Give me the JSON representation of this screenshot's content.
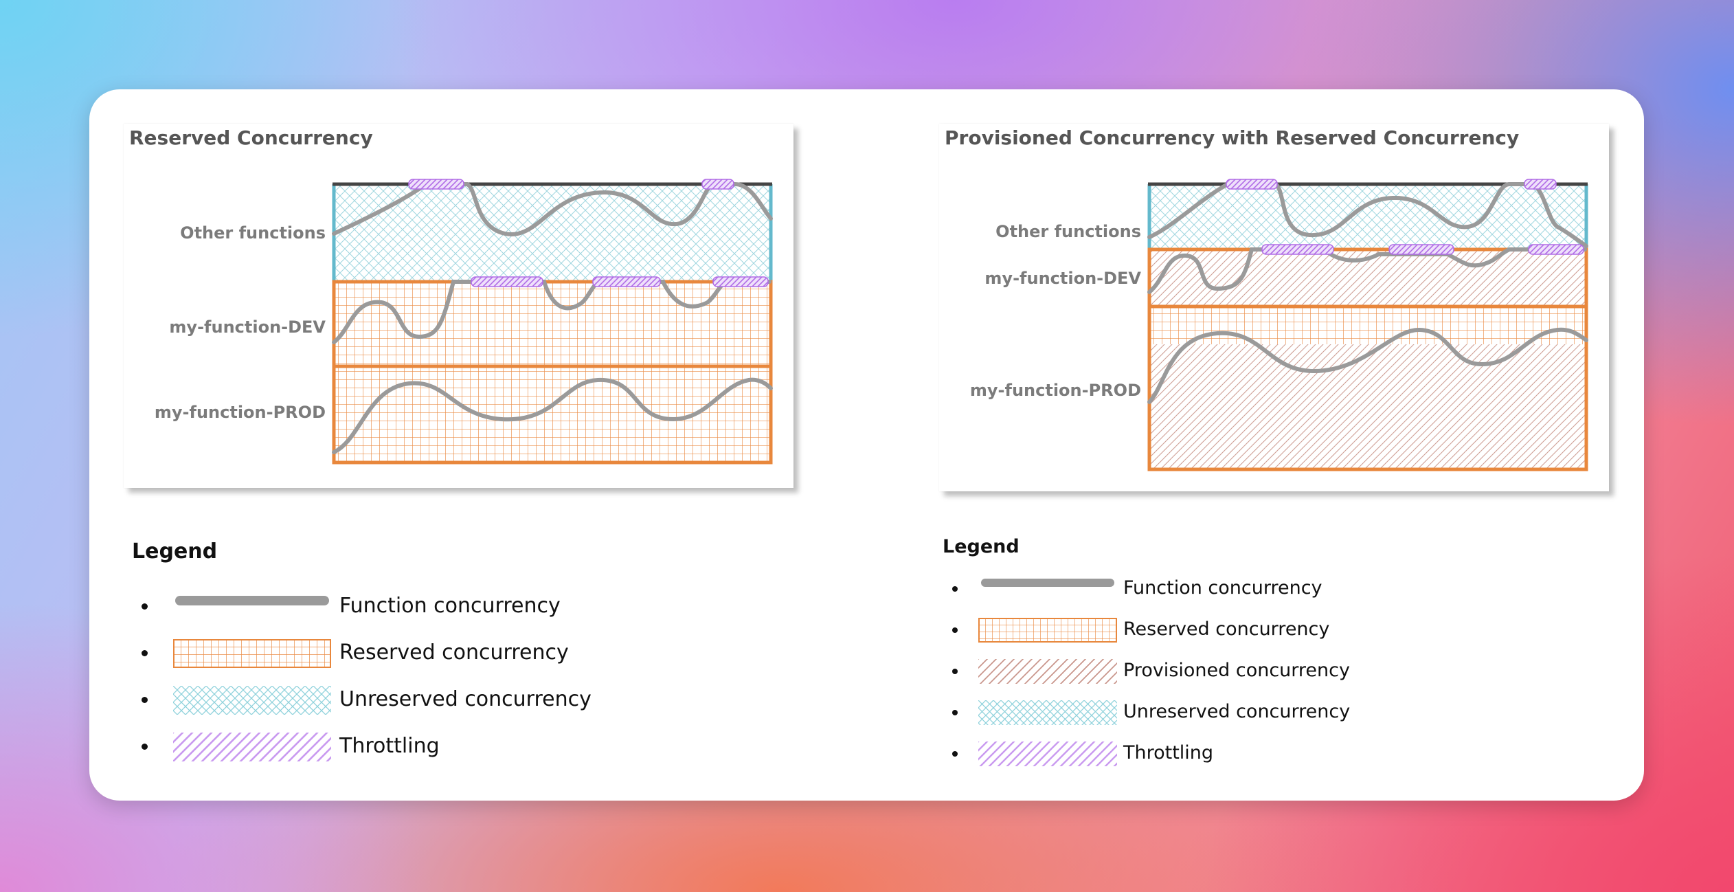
{
  "colors": {
    "function_line": "#9a9a9a",
    "reserved": "#e8873c",
    "provisioned": "#c9968c",
    "unreserved": "#8fd2dc",
    "throttling": "#b56ee6",
    "unreserved_border": "#63b9cc",
    "top_bar": "#444444"
  },
  "diagram_left": {
    "title": "Reserved Concurrency",
    "rows": [
      {
        "label": "Other functions",
        "fill": "unreserved"
      },
      {
        "label": "my-function-DEV",
        "fill": "reserved"
      },
      {
        "label": "my-function-PROD",
        "fill": "reserved"
      }
    ]
  },
  "diagram_right": {
    "title": "Provisioned Concurrency with Reserved Concurrency",
    "rows": [
      {
        "label": "Other functions",
        "fill": "unreserved"
      },
      {
        "label": "my-function-DEV",
        "fill": "provisioned"
      },
      {
        "label": "my-function-PROD",
        "fill": "reserved+provisioned"
      }
    ]
  },
  "legend_left": {
    "title": "Legend",
    "items": [
      {
        "swatch": "function-concurrency",
        "label": "Function concurrency"
      },
      {
        "swatch": "reserved-concurrency",
        "label": "Reserved concurrency"
      },
      {
        "swatch": "unreserved-concurrency",
        "label": "Unreserved concurrency"
      },
      {
        "swatch": "throttling",
        "label": "Throttling"
      }
    ]
  },
  "legend_right": {
    "title": "Legend",
    "items": [
      {
        "swatch": "function-concurrency",
        "label": "Function concurrency"
      },
      {
        "swatch": "reserved-concurrency",
        "label": "Reserved concurrency"
      },
      {
        "swatch": "provisioned-concurrency",
        "label": "Provisioned concurrency"
      },
      {
        "swatch": "unreserved-concurrency",
        "label": "Unreserved concurrency"
      },
      {
        "swatch": "throttling",
        "label": "Throttling"
      }
    ]
  }
}
